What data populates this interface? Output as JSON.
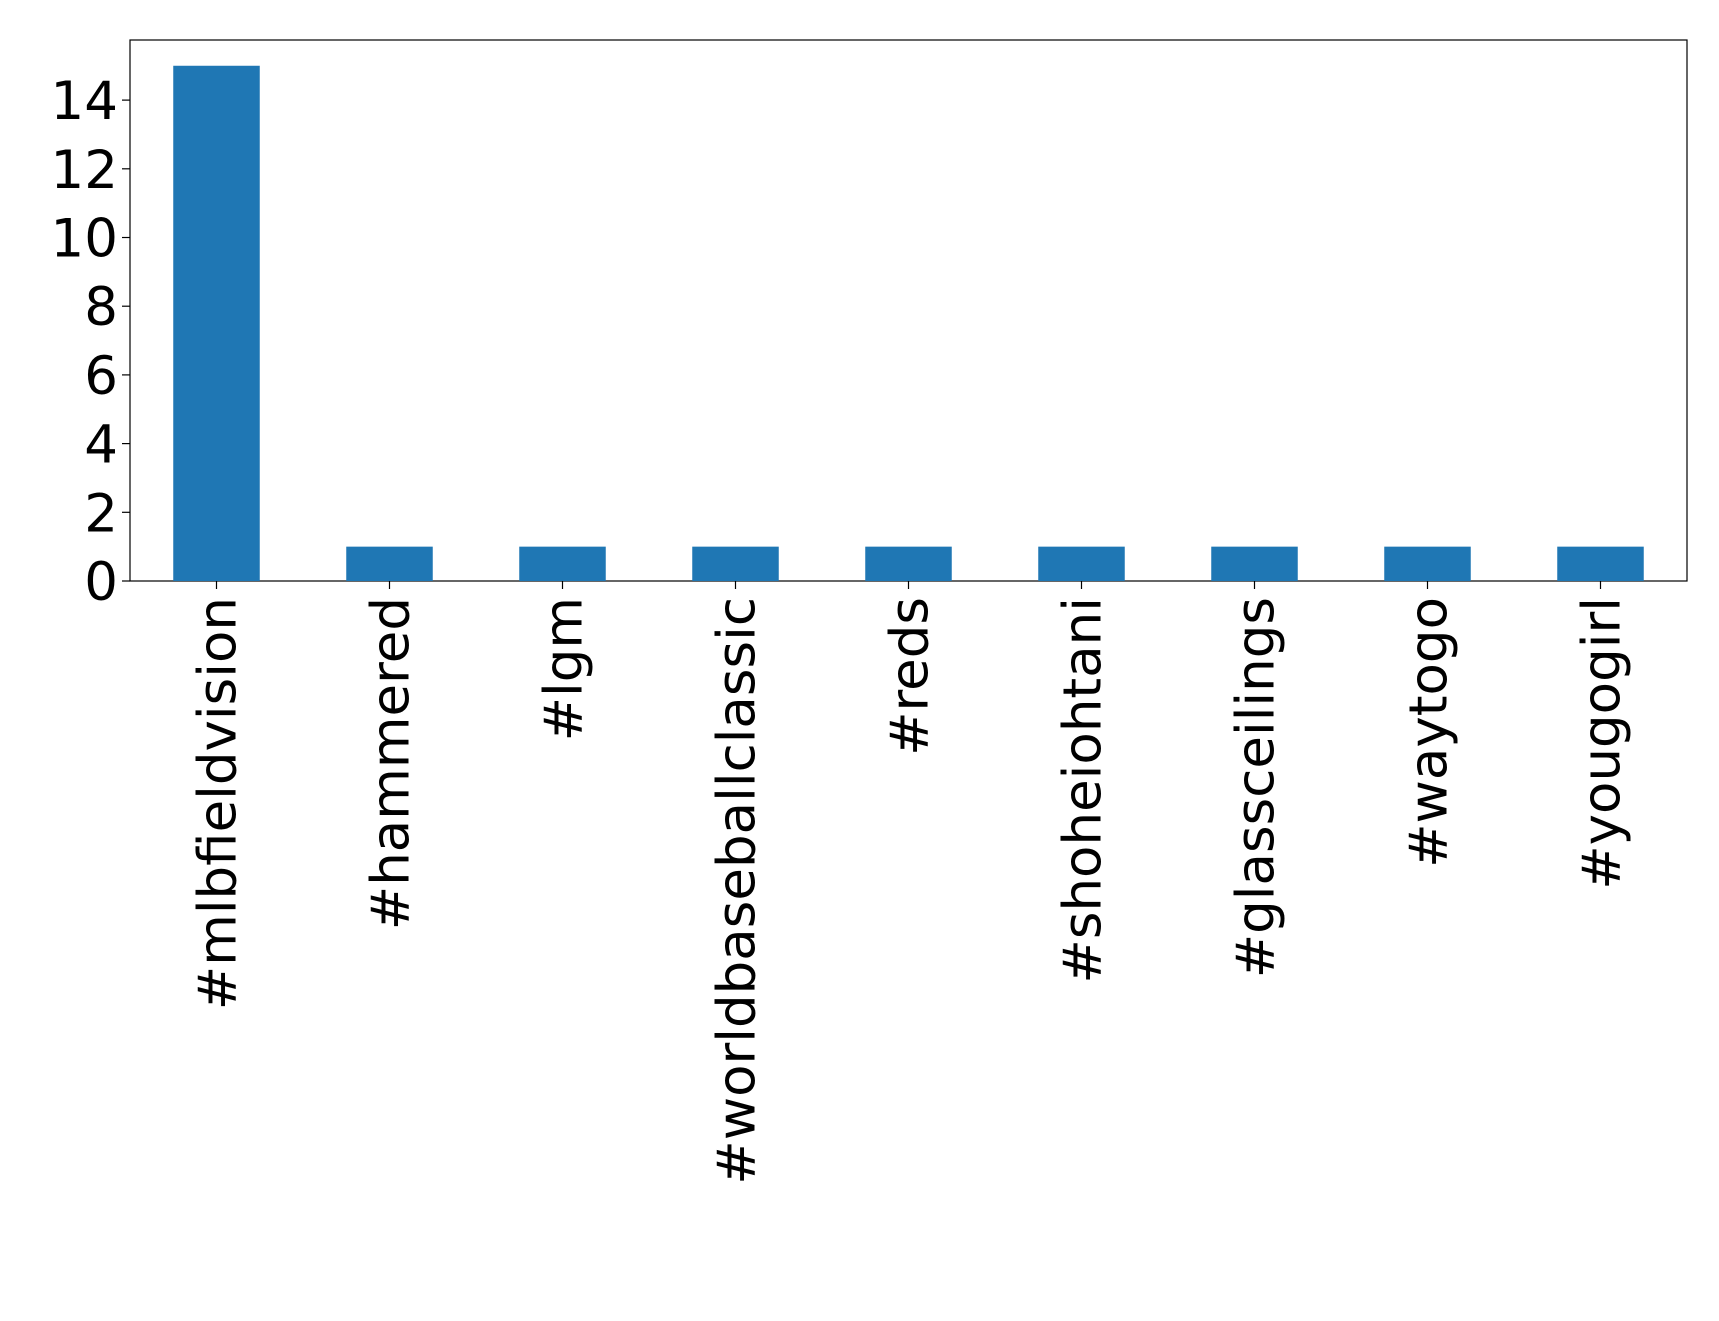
{
  "chart_data": {
    "type": "bar",
    "categories": [
      "#mlbfieldvision",
      "#hammered",
      "#lgm",
      "#worldbaseballclassic",
      "#reds",
      "#shoheiohtani",
      "#glassceilings",
      "#waytogo",
      "#yougogirl"
    ],
    "values": [
      15,
      1,
      1,
      1,
      1,
      1,
      1,
      1,
      1
    ],
    "color": "#1f77b4",
    "ylim": [
      0,
      15.75
    ],
    "yticks": [
      0,
      2,
      4,
      6,
      8,
      10,
      12,
      14
    ],
    "grid": false
  }
}
